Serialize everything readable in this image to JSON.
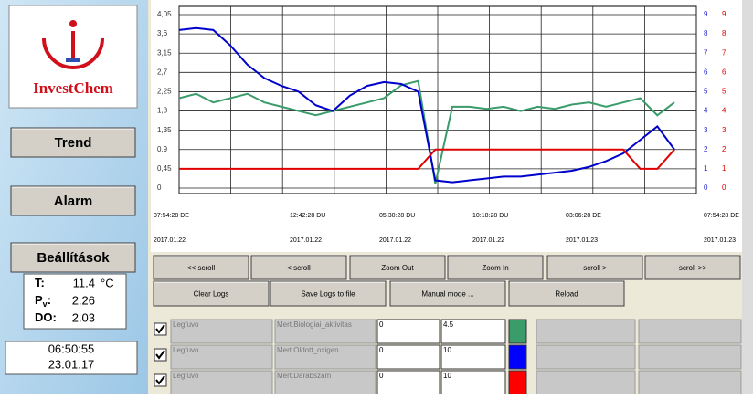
{
  "sidebar": {
    "logo": "InvestChem",
    "buttons": [
      "Trend",
      "Alarm",
      "Beállítások"
    ],
    "readings": [
      {
        "label": "T:",
        "value": "11.4",
        "unit": "°C"
      },
      {
        "label": "P",
        "label_sub": "v",
        "label_end": ":",
        "value": "2.26"
      },
      {
        "label": "DO:",
        "value": "2.03"
      }
    ],
    "time": "06:50:55",
    "date": "23.01.17"
  },
  "chart_data": {
    "type": "line",
    "ylim": [
      0,
      4.05
    ],
    "yticks": [
      0,
      {
        "value": 0.45,
        "label": "0,45"
      },
      {
        "value": 0.9,
        "label": "0,9"
      },
      {
        "value": 1.35,
        "label": "1,35"
      },
      {
        "value": 1.8,
        "label": "1,8"
      },
      {
        "value": 2.25,
        "label": "2,25"
      },
      {
        "value": 2.7,
        "label": "2,7"
      },
      {
        "value": 3.15,
        "label": "3,15"
      },
      {
        "value": 3.6,
        "label": "3,6"
      },
      {
        "value": 4.05,
        "label": "4,05"
      }
    ],
    "y2lim": [
      0,
      9
    ],
    "y2ticks": [
      0,
      1,
      2,
      3,
      4,
      5,
      6,
      7,
      8,
      9
    ],
    "y2color": "#2222cc",
    "y3lim": [
      0,
      9
    ],
    "y3ticks": [
      0,
      1,
      2,
      3,
      4,
      5,
      6,
      7,
      8,
      9
    ],
    "y3color": "#dd0000",
    "grid": true,
    "x_labels": [
      {
        "time": "07:54:28 DE",
        "date": "2017.01.22"
      },
      {
        "time": "12:42:28 DU",
        "date": "2017.01.22"
      },
      {
        "time": "05:30:28 DU",
        "date": "2017.01.22"
      },
      {
        "time": "10:18:28 DU",
        "date": "2017.01.22"
      },
      {
        "time": "03:06:28 DE",
        "date": "2017.01.23"
      },
      {
        "time": "07:54:28 DE",
        "date": "2017.01.23"
      }
    ],
    "series": [
      {
        "color": "#3a9c6a",
        "axis": "y",
        "values": [
          2.1,
          2.2,
          2.0,
          2.1,
          2.2,
          2.0,
          1.9,
          1.8,
          1.7,
          1.8,
          1.9,
          2.0,
          2.1,
          2.4,
          2.5,
          0.1,
          1.9,
          1.9,
          1.85,
          1.9,
          1.8,
          1.9,
          1.85,
          1.95,
          2.0,
          1.9,
          2.0,
          2.1,
          1.7,
          2.0
        ]
      },
      {
        "color": "#0000cc",
        "axis": "y2",
        "values": [
          8.2,
          8.3,
          8.2,
          7.4,
          6.4,
          5.7,
          5.3,
          5.0,
          4.3,
          4.0,
          4.8,
          5.3,
          5.5,
          5.4,
          5.0,
          0.4,
          0.3,
          0.4,
          0.5,
          0.6,
          0.6,
          0.7,
          0.8,
          0.9,
          1.1,
          1.4,
          1.8,
          2.5,
          3.2,
          2.0
        ]
      },
      {
        "color": "#e00000",
        "axis": "y3",
        "values": [
          1,
          1,
          1,
          1,
          1,
          1,
          1,
          1,
          1,
          1,
          1,
          1,
          1,
          1,
          1,
          2,
          2,
          2,
          2,
          2,
          2,
          2,
          2,
          2,
          2,
          2,
          2,
          1,
          1,
          2
        ]
      }
    ]
  },
  "buttons_row1": [
    "<< scroll",
    "< scroll",
    "Zoom Out",
    "Zoom In",
    "scroll >",
    "scroll >>"
  ],
  "buttons_row2": [
    "Clear Logs",
    "Save Logs to file",
    "Manual mode ...",
    "Reload"
  ],
  "table": {
    "rows": [
      [
        "Legfuvo",
        "Mert.Biologiai_aktivitas",
        0,
        4.5
      ],
      [
        "Legfuvo",
        "Mert.Oldott_oxigen",
        0,
        10
      ],
      [
        "Legfuvo",
        "Mert.Darabszam",
        0,
        10
      ]
    ],
    "colors": [
      "#3a9c6a",
      "#0000ff",
      "#ff0000"
    ]
  }
}
